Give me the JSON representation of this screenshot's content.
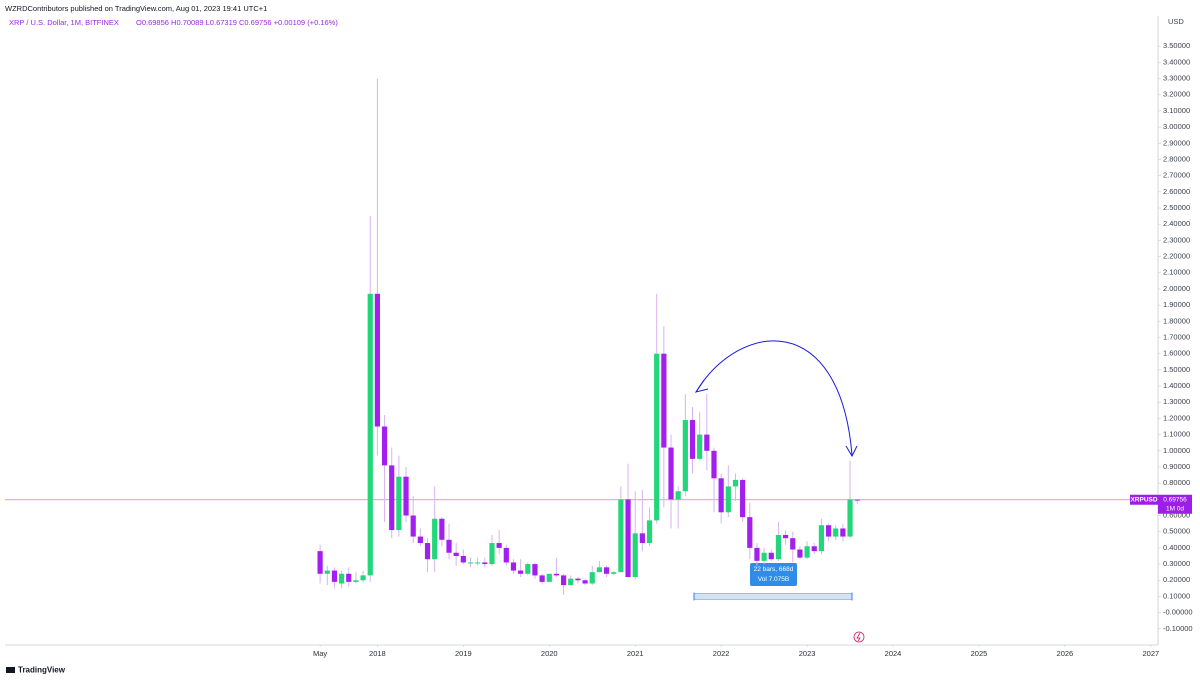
{
  "header": {
    "publisher": "WZRDContributors published on TradingView.com, Aug 01, 2023 19:41 UTC+1",
    "symbol": "XRP / U.S. Dollar, 1M, BITFINEX",
    "ohlc": "O0.69856 H0.70089 L0.67319 C0.69756 +0.00109 (+0.16%)",
    "currency": "USD",
    "logo": "TradingView"
  },
  "chart_data": {
    "type": "candlestick",
    "up_color": "#23d67b",
    "down_color": "#a21ff0",
    "wick_color": "#d9b3ee",
    "open": [
      0.38,
      0.24,
      0.26,
      0.18,
      0.24,
      0.19,
      0.2,
      0.23,
      1.97,
      1.15,
      0.91,
      0.51,
      0.84,
      0.6,
      0.47,
      0.43,
      0.33,
      0.58,
      0.45,
      0.37,
      0.35,
      0.31,
      0.31,
      0.31,
      0.3,
      0.43,
      0.4,
      0.31,
      0.26,
      0.24,
      0.3,
      0.23,
      0.19,
      0.24,
      0.23,
      0.17,
      0.21,
      0.2,
      0.18,
      0.25,
      0.28,
      0.24,
      0.25,
      0.7,
      0.22,
      0.49,
      0.43,
      0.57,
      1.6,
      1.02,
      0.7,
      0.75,
      1.19,
      0.95,
      1.1,
      1.0,
      0.83,
      0.62,
      0.78,
      0.82,
      0.59,
      0.4,
      0.32,
      0.37,
      0.33,
      0.48,
      0.46,
      0.39,
      0.34,
      0.41,
      0.38,
      0.54,
      0.47,
      0.52,
      0.47,
      0.69856
    ],
    "high": [
      0.42,
      0.29,
      0.28,
      0.26,
      0.28,
      0.25,
      0.26,
      2.45,
      3.3,
      1.22,
      1.02,
      0.97,
      0.9,
      0.72,
      0.52,
      0.46,
      0.78,
      0.59,
      0.55,
      0.43,
      0.39,
      0.34,
      0.34,
      0.34,
      0.48,
      0.51,
      0.42,
      0.33,
      0.33,
      0.31,
      0.31,
      0.24,
      0.24,
      0.34,
      0.24,
      0.23,
      0.22,
      0.21,
      0.29,
      0.32,
      0.29,
      0.26,
      0.78,
      0.92,
      0.75,
      0.76,
      0.65,
      1.97,
      1.77,
      1.1,
      0.78,
      1.35,
      1.27,
      1.24,
      1.35,
      1.02,
      0.86,
      0.91,
      0.86,
      0.83,
      0.68,
      0.43,
      0.4,
      0.39,
      0.56,
      0.51,
      0.5,
      0.41,
      0.44,
      0.43,
      0.58,
      0.55,
      0.54,
      0.55,
      0.94,
      0.70089
    ],
    "low": [
      0.18,
      0.17,
      0.15,
      0.15,
      0.16,
      0.18,
      0.19,
      0.19,
      0.97,
      0.56,
      0.46,
      0.47,
      0.56,
      0.43,
      0.41,
      0.25,
      0.25,
      0.41,
      0.33,
      0.29,
      0.3,
      0.28,
      0.29,
      0.28,
      0.29,
      0.36,
      0.29,
      0.24,
      0.22,
      0.23,
      0.21,
      0.18,
      0.19,
      0.22,
      0.11,
      0.17,
      0.18,
      0.17,
      0.17,
      0.25,
      0.22,
      0.23,
      0.25,
      0.22,
      0.21,
      0.38,
      0.41,
      0.55,
      0.65,
      0.52,
      0.52,
      0.72,
      0.86,
      0.94,
      0.88,
      0.62,
      0.55,
      0.59,
      0.69,
      0.56,
      0.33,
      0.29,
      0.3,
      0.32,
      0.32,
      0.42,
      0.31,
      0.33,
      0.33,
      0.36,
      0.36,
      0.44,
      0.45,
      0.44,
      0.46,
      0.67319
    ],
    "close": [
      0.24,
      0.26,
      0.19,
      0.24,
      0.19,
      0.2,
      0.23,
      1.97,
      1.15,
      0.91,
      0.51,
      0.84,
      0.6,
      0.47,
      0.43,
      0.33,
      0.58,
      0.45,
      0.37,
      0.35,
      0.31,
      0.31,
      0.31,
      0.3,
      0.43,
      0.4,
      0.31,
      0.26,
      0.24,
      0.3,
      0.23,
      0.19,
      0.24,
      0.23,
      0.17,
      0.21,
      0.2,
      0.18,
      0.25,
      0.28,
      0.24,
      0.25,
      0.7,
      0.22,
      0.49,
      0.43,
      0.57,
      1.6,
      1.02,
      0.7,
      0.75,
      1.19,
      0.95,
      1.1,
      1.0,
      0.83,
      0.62,
      0.78,
      0.82,
      0.59,
      0.4,
      0.32,
      0.37,
      0.33,
      0.48,
      0.46,
      0.39,
      0.34,
      0.41,
      0.38,
      0.54,
      0.47,
      0.52,
      0.47,
      0.7,
      0.69756
    ],
    "ylim": [
      -0.2,
      3.6
    ],
    "yticks": [
      {
        "value": 3.5,
        "label": "3.50000"
      },
      {
        "value": 3.4,
        "label": "3.40000"
      },
      {
        "value": 3.3,
        "label": "3.30000"
      },
      {
        "value": 3.2,
        "label": "3.20000"
      },
      {
        "value": 3.1,
        "label": "3.10000"
      },
      {
        "value": 3.0,
        "label": "3.00000"
      },
      {
        "value": 2.9,
        "label": "2.90000"
      },
      {
        "value": 2.8,
        "label": "2.80000"
      },
      {
        "value": 2.7,
        "label": "2.70000"
      },
      {
        "value": 2.6,
        "label": "2.60000"
      },
      {
        "value": 2.5,
        "label": "2.50000"
      },
      {
        "value": 2.4,
        "label": "2.40000"
      },
      {
        "value": 2.3,
        "label": "2.30000"
      },
      {
        "value": 2.2,
        "label": "2.20000"
      },
      {
        "value": 2.1,
        "label": "2.10000"
      },
      {
        "value": 2.0,
        "label": "2.00000"
      },
      {
        "value": 1.9,
        "label": "1.90000"
      },
      {
        "value": 1.8,
        "label": "1.80000"
      },
      {
        "value": 1.7,
        "label": "1.70000"
      },
      {
        "value": 1.6,
        "label": "1.60000"
      },
      {
        "value": 1.5,
        "label": "1.50000"
      },
      {
        "value": 1.4,
        "label": "1.40000"
      },
      {
        "value": 1.3,
        "label": "1.30000"
      },
      {
        "value": 1.2,
        "label": "1.20000"
      },
      {
        "value": 1.1,
        "label": "1.10000"
      },
      {
        "value": 1.0,
        "label": "1.00000"
      },
      {
        "value": 0.9,
        "label": "0.90000"
      },
      {
        "value": 0.8,
        "label": "0.80000"
      },
      {
        "value": 0.6,
        "label": "0.60000"
      },
      {
        "value": 0.5,
        "label": "0.50000"
      },
      {
        "value": 0.4,
        "label": "0.40000"
      },
      {
        "value": 0.3,
        "label": "0.30000"
      },
      {
        "value": 0.2,
        "label": "0.20000"
      },
      {
        "value": 0.1,
        "label": "0.10000"
      },
      {
        "value": 0,
        "label": "-0.00000"
      },
      {
        "value": -0.1,
        "label": "-0.10000"
      }
    ],
    "xlim": [
      -44,
      117
    ],
    "xticks": [
      {
        "value": 0,
        "label": "May"
      },
      {
        "value": 8,
        "label": "2018"
      },
      {
        "value": 20,
        "label": "2019"
      },
      {
        "value": 32,
        "label": "2020"
      },
      {
        "value": 44,
        "label": "2021"
      },
      {
        "value": 56,
        "label": "2022"
      },
      {
        "value": 68,
        "label": "2023"
      },
      {
        "value": 80,
        "label": "2024"
      },
      {
        "value": 92,
        "label": "2025"
      },
      {
        "value": 104,
        "label": "2026"
      },
      {
        "value": 116,
        "label": "2027"
      }
    ],
    "grid": false,
    "last_price": 0.69756,
    "last_price_name": "XRPUSD",
    "countdown": "1M 0d",
    "measure": {
      "bars": "22 bars, 668d",
      "volume": "Vol 7.075B"
    }
  }
}
